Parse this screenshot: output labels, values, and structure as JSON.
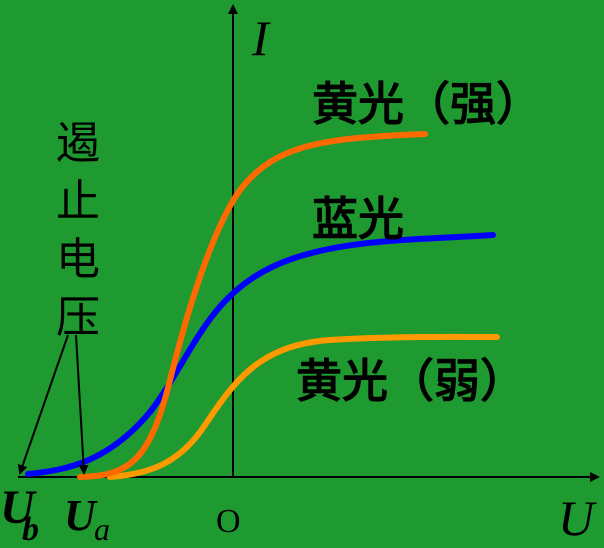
{
  "axes": {
    "y_label": "I",
    "x_label": "U",
    "origin": "O"
  },
  "curves": [
    {
      "label": "黄光（强）",
      "color": "#ff6a00"
    },
    {
      "label": "蓝光",
      "color": "#0000ff"
    },
    {
      "label": "黄光（弱）",
      "color": "#ff9900"
    }
  ],
  "annotation": {
    "chars": [
      "遏",
      "止",
      "电",
      "压"
    ]
  },
  "voltages": {
    "ub_main": "U",
    "ub_sub": "b",
    "ub_color": "#0030ff",
    "ua_main": "U",
    "ua_sub": "a",
    "ua_color": "#ff9900"
  },
  "axis_color": "#000000",
  "background": "#1f9a30"
}
